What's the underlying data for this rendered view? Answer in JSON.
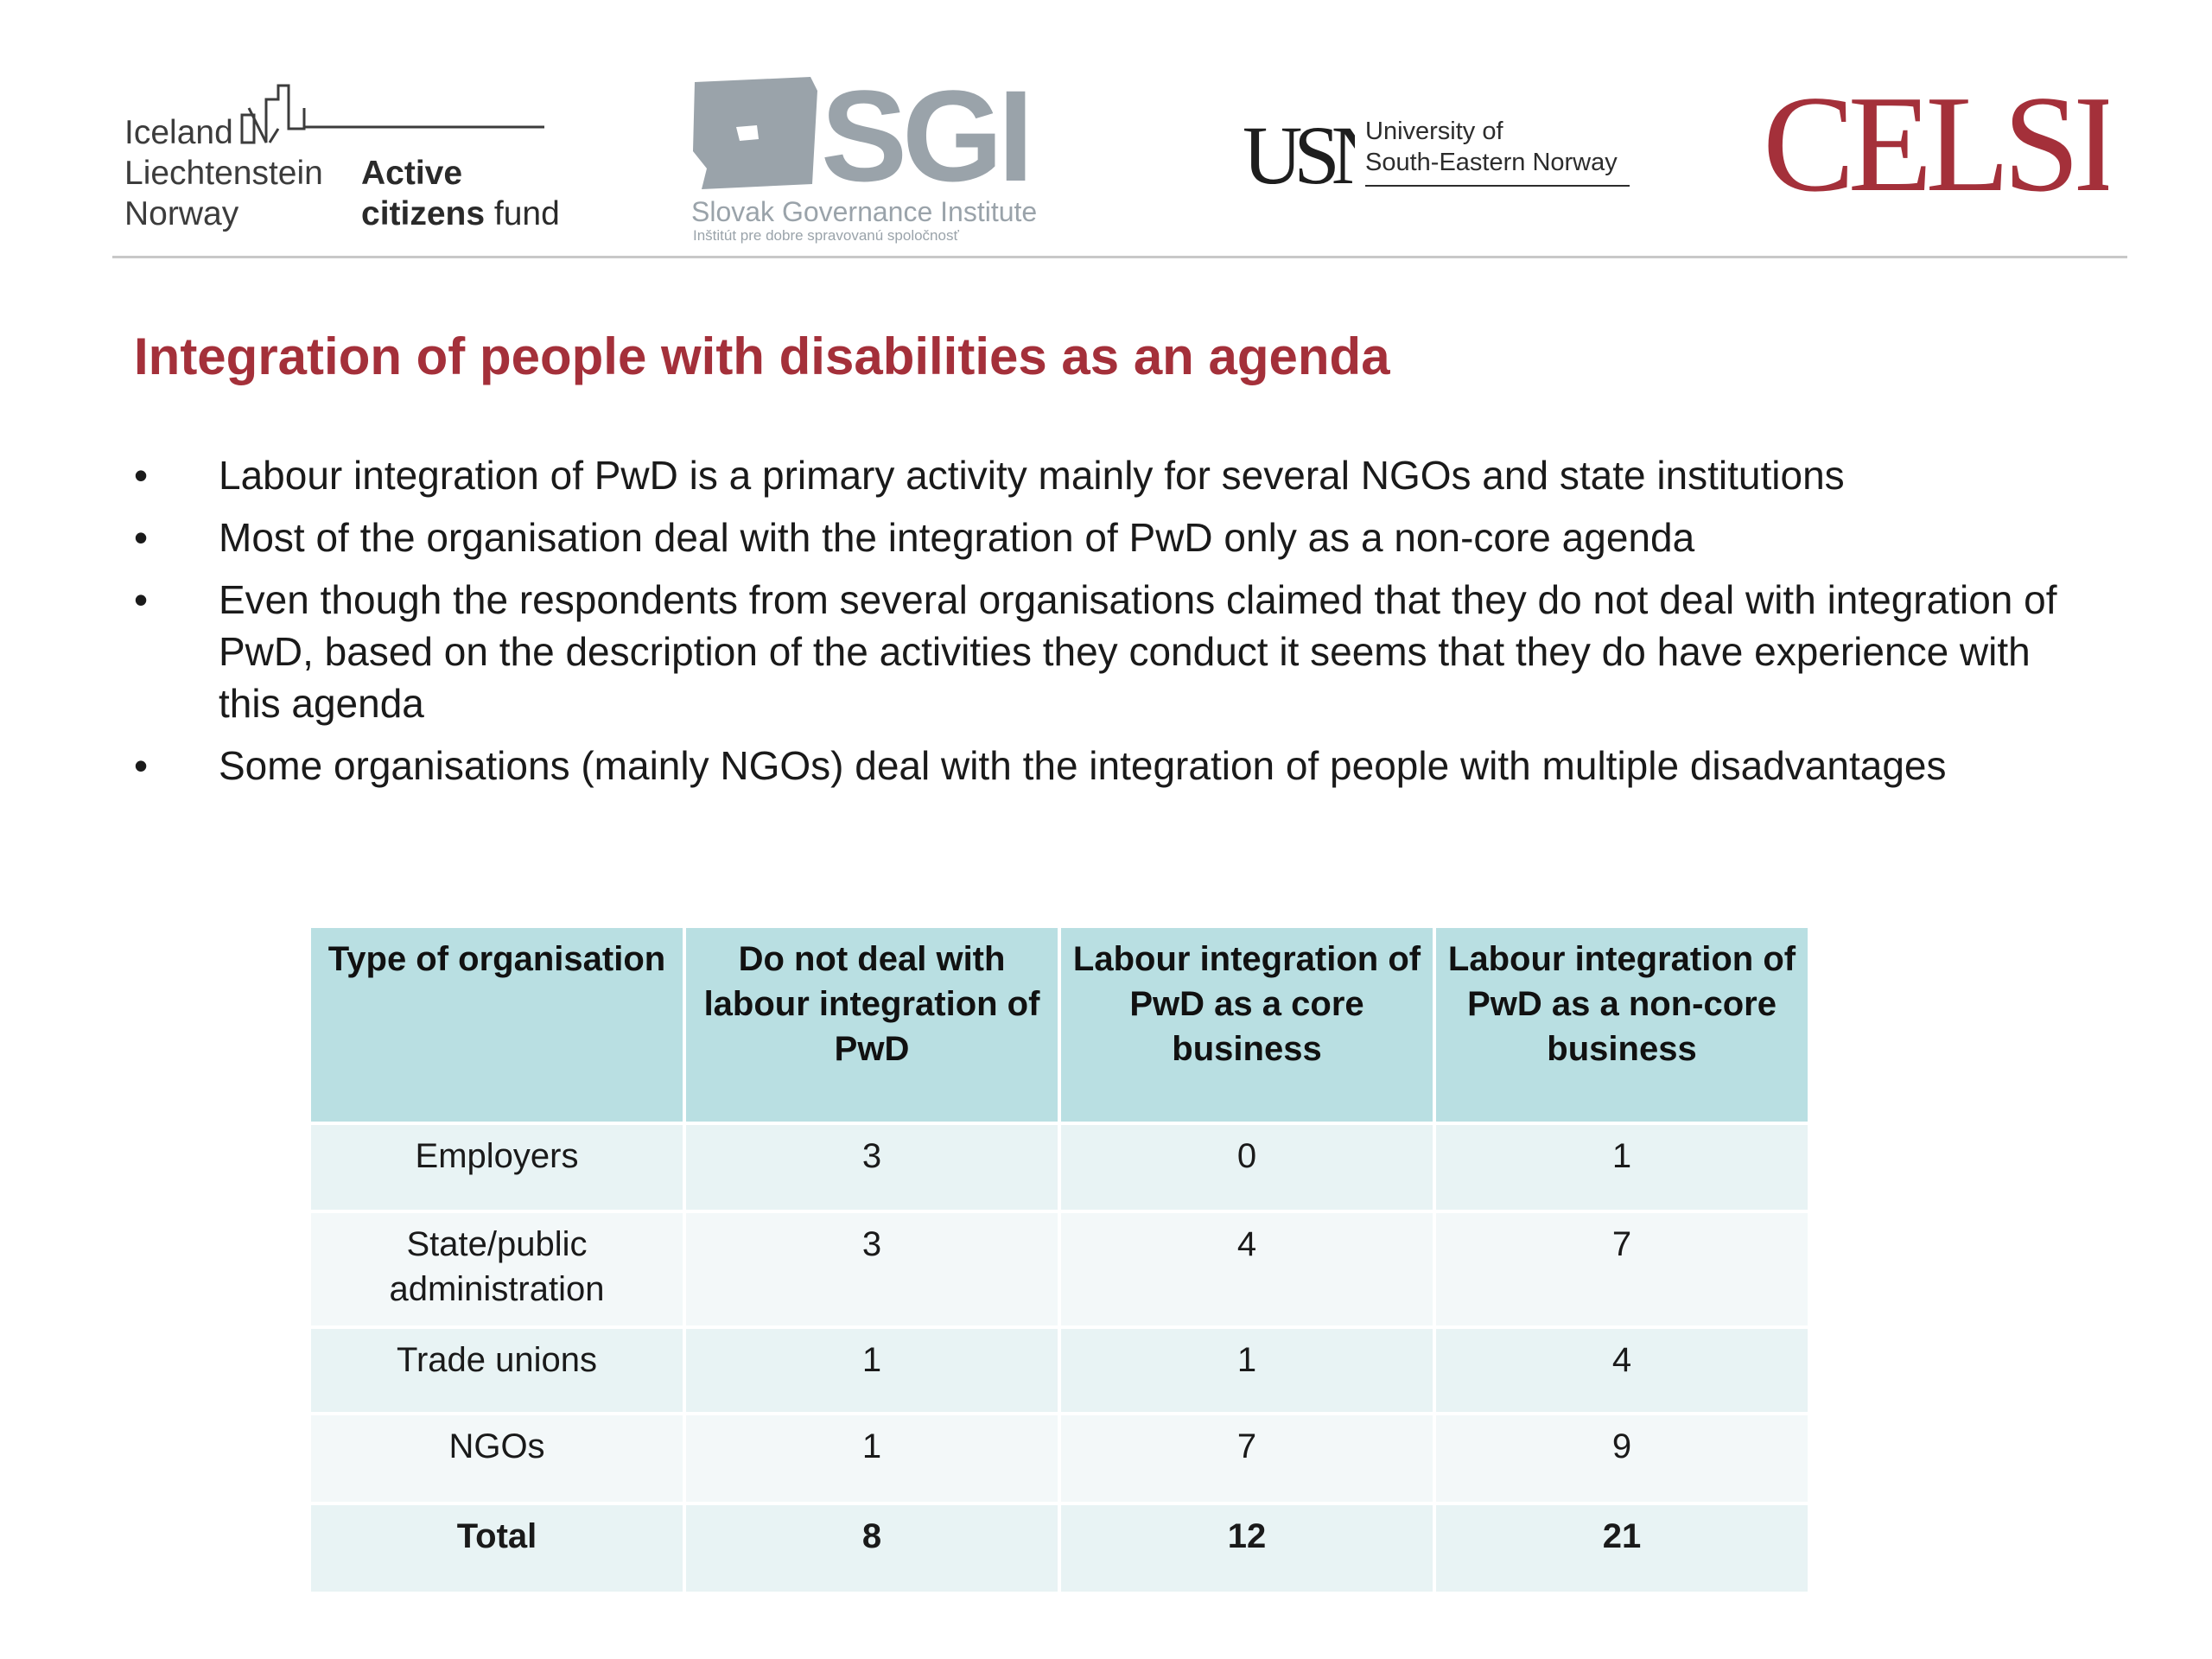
{
  "logos": {
    "eea": {
      "countries": [
        "Iceland",
        "Liechtenstein",
        "Norway"
      ],
      "fund_word1": "Active",
      "fund_word2": "citizens",
      "fund_word3": "fund"
    },
    "sgi": {
      "acronym": "SGI",
      "name": "Slovak Governance Institute",
      "subtitle": "Inštitút pre dobre spravovanú spoločnosť"
    },
    "usn": {
      "mark": "USN",
      "line1": "University of",
      "line2": "South-Eastern Norway"
    },
    "celsi": {
      "text": "CELSI"
    }
  },
  "colors": {
    "title": "#a4303a",
    "table_header": "#b9dfe2",
    "row_odd": "#e8f3f4",
    "row_even": "#f3f8f9",
    "celsi": "#a4303a",
    "sgi_gray": "#9aa3aa"
  },
  "title": "Integration of people with disabilities as an agenda",
  "bullets": [
    "Labour integration of PwD is a primary activity mainly for several NGOs and state institutions",
    "Most of the organisation deal with the integration of PwD only as a non-core agenda",
    "Even though the respondents from several organisations claimed that they do not deal with integration of PwD, based on the description of the activities they conduct it seems that they do have experience with this agenda",
    "Some organisations (mainly NGOs) deal with the integration of people with multiple disadvantages"
  ],
  "table": {
    "headers": [
      "Type of organisation",
      "Do not deal with labour integration of PwD",
      "Labour integration of PwD as a core business",
      "Labour integration of PwD as a non-core business"
    ],
    "rows": [
      [
        "Employers",
        "3",
        "0",
        "1"
      ],
      [
        "State/public administration",
        "3",
        "4",
        "7"
      ],
      [
        "Trade unions",
        "1",
        "1",
        "4"
      ],
      [
        "NGOs",
        "1",
        "7",
        "9"
      ],
      [
        "Total",
        "8",
        "12",
        "21"
      ]
    ]
  }
}
